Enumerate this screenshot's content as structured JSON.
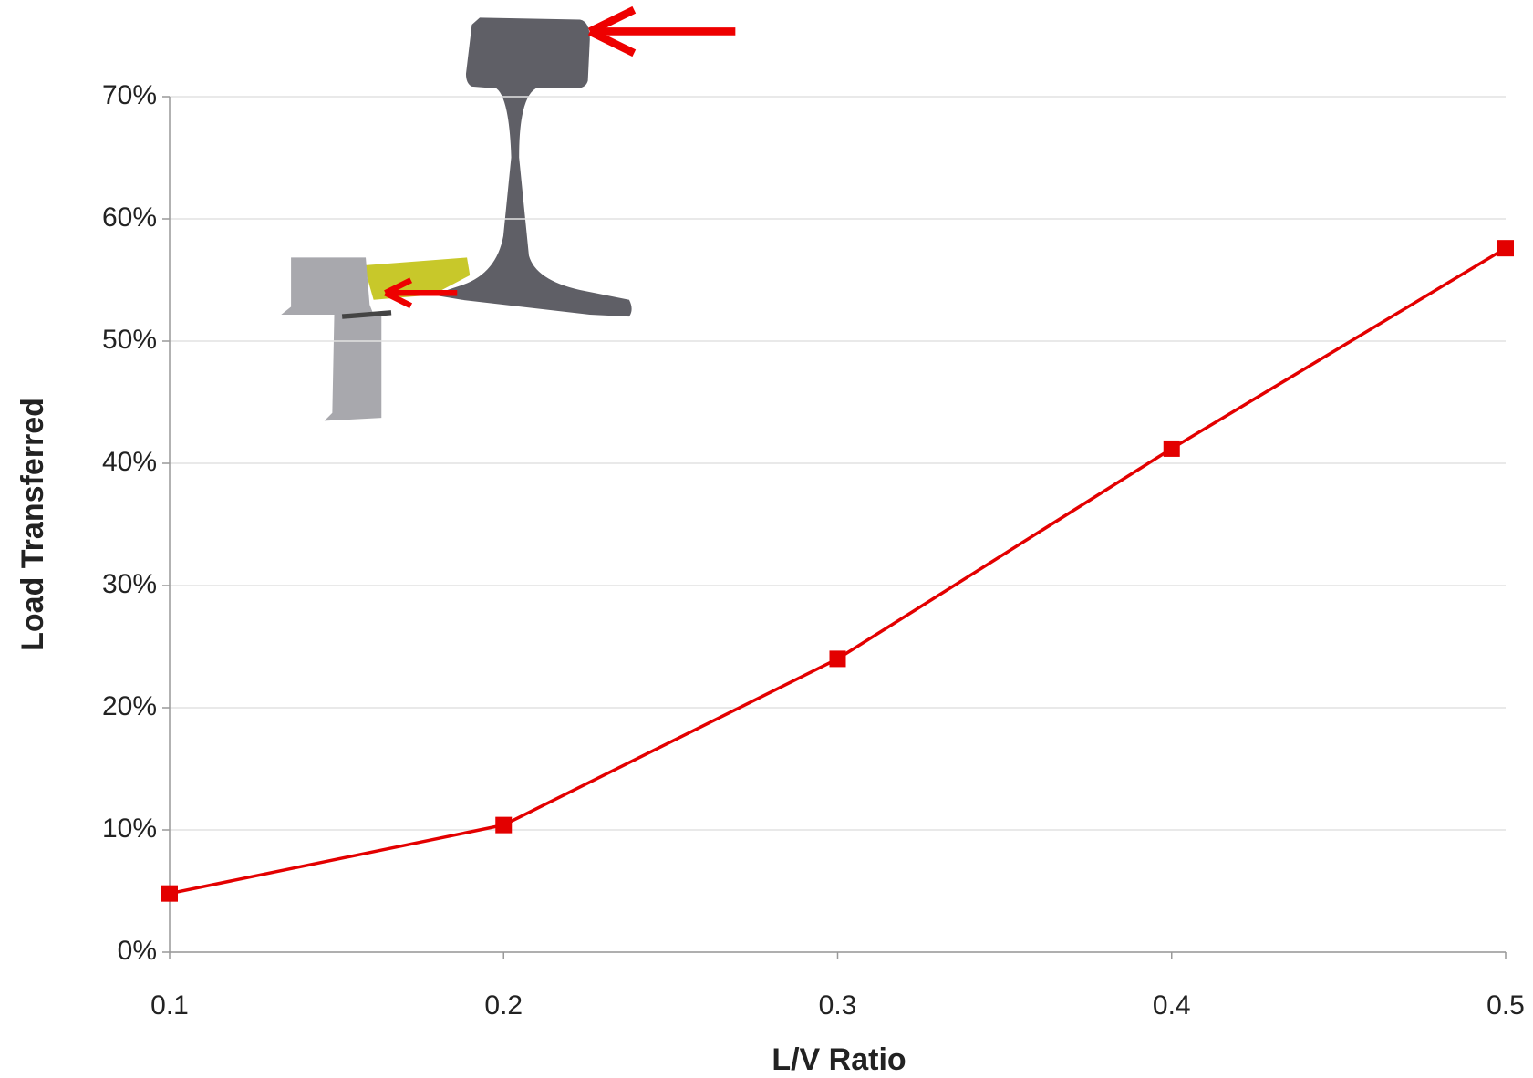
{
  "chart_data": {
    "type": "line",
    "x_label": "L/V Ratio",
    "y_label": "Load Transferred",
    "x": [
      0.1,
      0.2,
      0.3,
      0.4,
      0.5
    ],
    "series": [
      {
        "color": "#e30000",
        "values": [
          4.8,
          10.4,
          24.0,
          41.2,
          57.6
        ]
      }
    ],
    "xlim": [
      0.1,
      0.5
    ],
    "xticks": [
      0.1,
      0.2,
      0.3,
      0.4,
      0.5
    ],
    "ylim": [
      0,
      70
    ],
    "yticks": [
      {
        "value": 0,
        "label": "0%"
      },
      {
        "value": 10,
        "label": "10%"
      },
      {
        "value": 20,
        "label": "20%"
      },
      {
        "value": 30,
        "label": "30%"
      },
      {
        "value": 40,
        "label": "40%"
      },
      {
        "value": 50,
        "label": "50%"
      },
      {
        "value": 60,
        "label": "60%"
      },
      {
        "value": 70,
        "label": "70%"
      }
    ],
    "grid": true
  }
}
